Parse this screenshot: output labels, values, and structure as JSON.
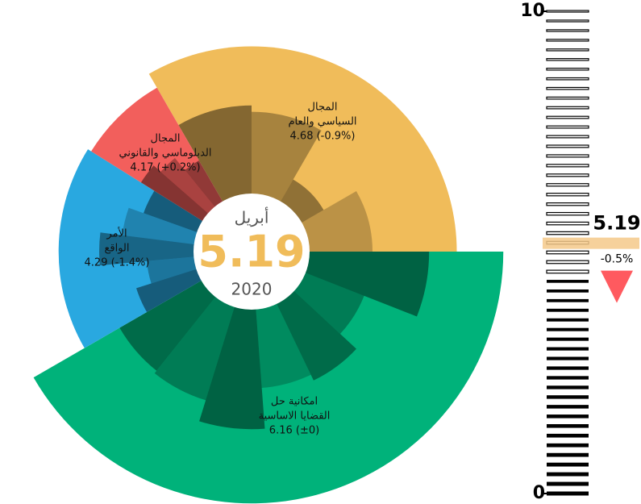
{
  "chart_data": {
    "type": "polar-area",
    "center": {
      "month": "أبريل",
      "value": 5.19,
      "year": "2020",
      "color": "#f0bc5a"
    },
    "domains": [
      {
        "name_lines": [
          "المجال",
          "السياسي والعام"
        ],
        "value": 4.68,
        "value_label": "4.68 (-0.9%)",
        "color": "#f0bc5a",
        "indicators": [
          2.8,
          2.6,
          0.8,
          2.0
        ]
      },
      {
        "name_lines": [
          "امكانية حل",
          "القضايا الاساسية"
        ],
        "value": 6.16,
        "value_label": "6.16 (±0)",
        "color": "#00b27a",
        "indicators": [
          3.8,
          2.0,
          2.7,
          2.5,
          3.8,
          3.1,
          3.0
        ]
      },
      {
        "name_lines": [
          "الأمر",
          "الواقع"
        ],
        "value": 4.29,
        "value_label": "4.29 (-1.4%)",
        "color": "#29a8e0",
        "indicators": [
          2.0,
          1.5,
          3.0,
          2.3,
          1.8
        ]
      },
      {
        "name_lines": [
          "المجال",
          "الدبلوماسي والقانوني"
        ],
        "value": 4.17,
        "value_label": "4.17 (+0.2%)",
        "color": "#f25f5c",
        "indicators": [
          2.3,
          2.0,
          1.5
        ]
      }
    ],
    "gauge": {
      "ylim": [
        0,
        10
      ],
      "yticks": [
        0,
        10
      ],
      "change": "-0.5%",
      "marker_color": "#f5c98a",
      "arrow_color": "#ff5a5f"
    }
  }
}
